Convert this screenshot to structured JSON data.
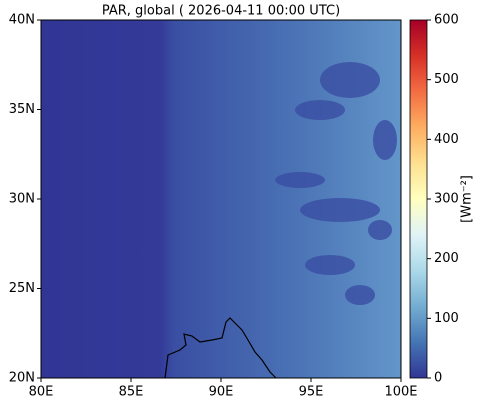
{
  "chart_data": {
    "type": "heatmap",
    "title": "PAR, global ( 2026-04-11 00:00 UTC)",
    "xlim": [
      80,
      100
    ],
    "xticks": [
      {
        "value": 80,
        "label": "80E"
      },
      {
        "value": 85,
        "label": "85E"
      },
      {
        "value": 90,
        "label": "90E"
      },
      {
        "value": 95,
        "label": "95E"
      },
      {
        "value": 100,
        "label": "100E"
      }
    ],
    "ylim": [
      20,
      40
    ],
    "yticks": [
      {
        "value": 20,
        "label": "20N"
      },
      {
        "value": 25,
        "label": "25N"
      },
      {
        "value": 30,
        "label": "30N"
      },
      {
        "value": 35,
        "label": "35N"
      },
      {
        "value": 40,
        "label": "40N"
      }
    ],
    "colorbar": {
      "label": "[Wm⁻²]",
      "lim": [
        0,
        600
      ],
      "ticks": [
        0,
        100,
        200,
        300,
        400,
        500,
        600
      ]
    }
  }
}
